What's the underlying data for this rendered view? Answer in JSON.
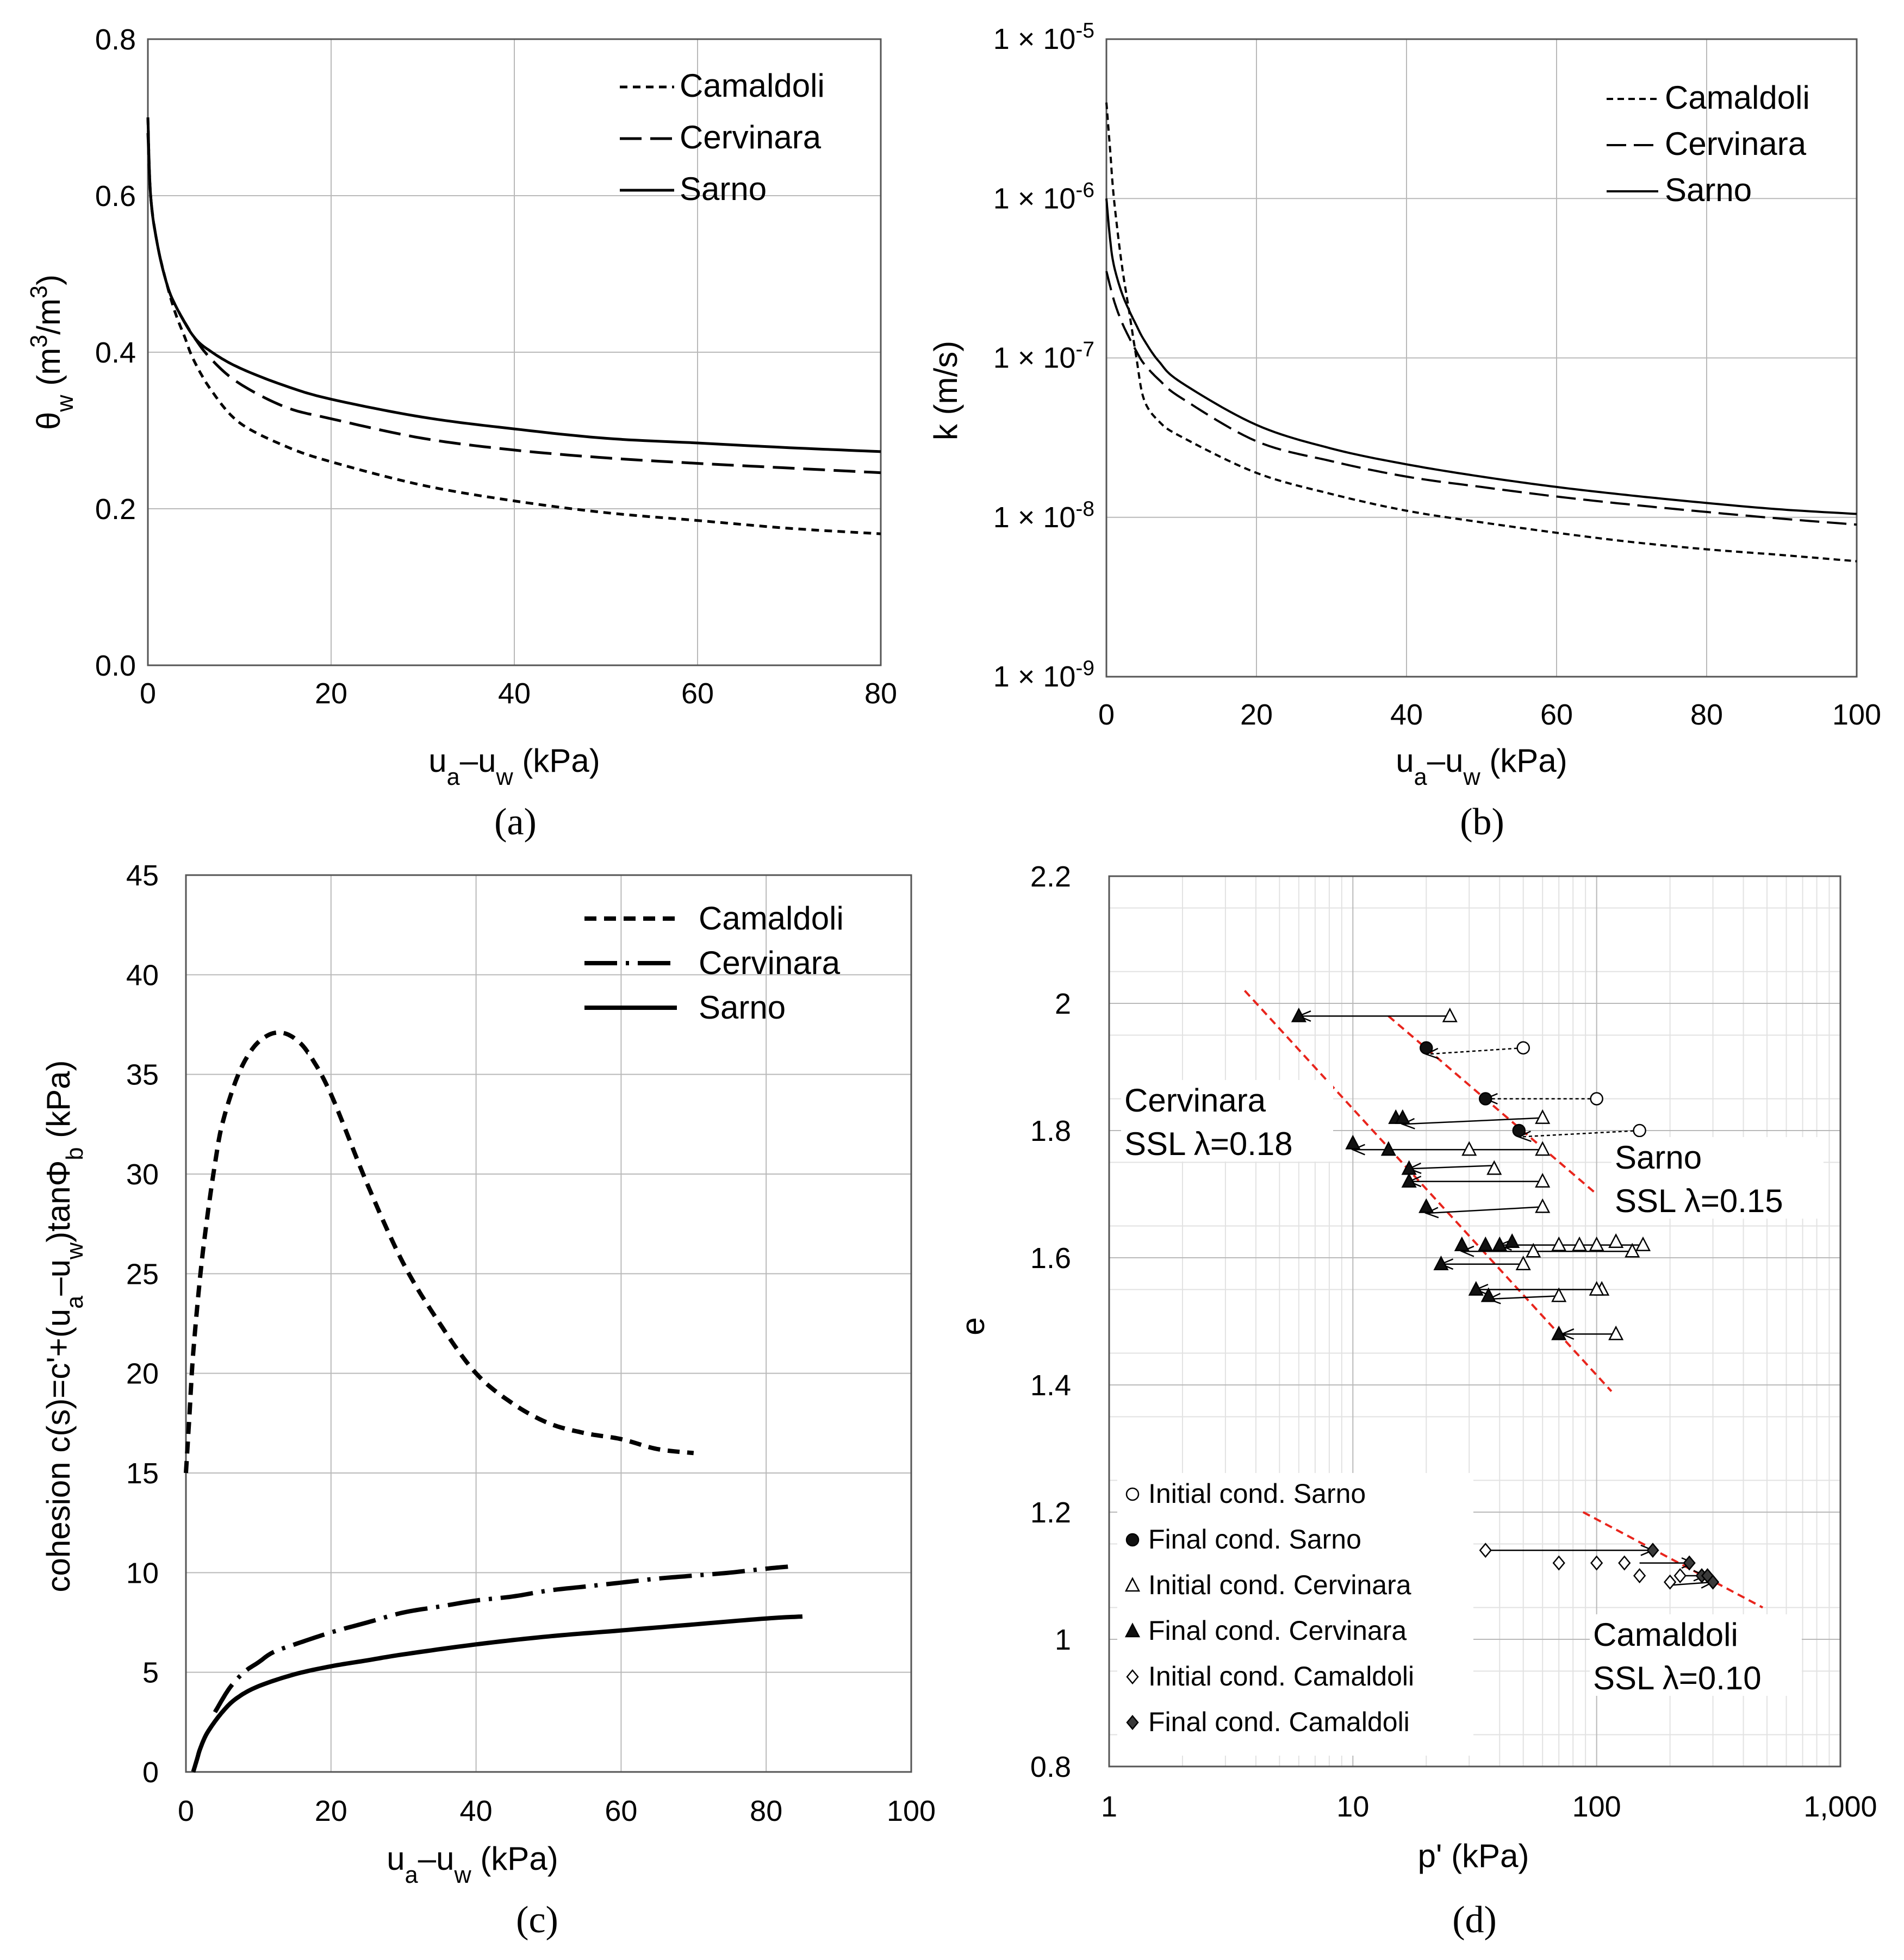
{
  "chart_data": [
    {
      "id": "a",
      "type": "line",
      "panel_label": "(a)",
      "xlabel": "ua–uw (kPa)",
      "ylabel": "θw (m3/m3)",
      "xlim": [
        0,
        80
      ],
      "ylim": [
        0,
        0.8
      ],
      "xticks": [
        0,
        20,
        40,
        60,
        80
      ],
      "yticks": [
        0,
        0.2,
        0.4,
        0.6,
        0.8
      ],
      "xtick_labels": [
        "0",
        "20",
        "40",
        "60",
        "80"
      ],
      "ytick_labels": [
        "0.0",
        "0.2",
        "0.4",
        "0.6",
        "0.8"
      ],
      "legend_position": "top-right",
      "series": [
        {
          "name": "Camaldoli",
          "style": "short-dash",
          "x": [
            0,
            0.3,
            1,
            2,
            3,
            4,
            5,
            7,
            10,
            15,
            20,
            30,
            40,
            50,
            60,
            70,
            80
          ],
          "y": [
            0.7,
            0.6,
            0.54,
            0.49,
            0.45,
            0.42,
            0.39,
            0.35,
            0.31,
            0.28,
            0.26,
            0.23,
            0.21,
            0.195,
            0.185,
            0.175,
            0.168
          ]
        },
        {
          "name": "Cervinara",
          "style": "long-dash",
          "x": [
            0,
            0.3,
            1,
            2,
            3,
            5,
            7,
            10,
            15,
            20,
            30,
            40,
            50,
            60,
            70,
            80
          ],
          "y": [
            0.68,
            0.6,
            0.54,
            0.49,
            0.46,
            0.42,
            0.39,
            0.36,
            0.33,
            0.315,
            0.29,
            0.275,
            0.265,
            0.258,
            0.252,
            0.246
          ]
        },
        {
          "name": "Sarno",
          "style": "solid",
          "x": [
            0,
            0.3,
            1,
            2,
            3,
            5,
            7,
            10,
            15,
            20,
            30,
            40,
            50,
            60,
            70,
            80
          ],
          "y": [
            0.7,
            0.6,
            0.54,
            0.49,
            0.46,
            0.42,
            0.4,
            0.38,
            0.357,
            0.34,
            0.317,
            0.302,
            0.29,
            0.284,
            0.278,
            0.273
          ]
        }
      ]
    },
    {
      "id": "b",
      "type": "line",
      "panel_label": "(b)",
      "xlabel": "ua–uw (kPa)",
      "ylabel": "k (m/s)",
      "xlim": [
        0,
        100
      ],
      "ylim_log10": [
        -9,
        -5
      ],
      "yscale": "log",
      "xticks": [
        0,
        20,
        40,
        60,
        80,
        100
      ],
      "xtick_labels": [
        "0",
        "20",
        "40",
        "60",
        "80",
        "100"
      ],
      "ytick_exponents": [
        -9,
        -8,
        -7,
        -6,
        -5
      ],
      "ytick_labels": [
        "1 × 10-9",
        "1 × 10-8",
        "1 × 10-7",
        "1 × 10-6",
        "1 × 10-5"
      ],
      "legend_position": "top-right",
      "series": [
        {
          "name": "Camaldoli",
          "style": "short-dash",
          "x": [
            0,
            0.5,
            1,
            2,
            3,
            4,
            5,
            7,
            10,
            20,
            30,
            40,
            50,
            60,
            70,
            80,
            90,
            100
          ],
          "y": [
            4e-06,
            2e-06,
            1e-06,
            4e-07,
            2e-07,
            1e-07,
            5.5e-08,
            4e-08,
            3.2e-08,
            1.9e-08,
            1.4e-08,
            1.1e-08,
            9.3e-09,
            8e-09,
            7e-09,
            6.3e-09,
            5.8e-09,
            5.3e-09
          ]
        },
        {
          "name": "Cervinara",
          "style": "long-dash",
          "x": [
            0,
            1,
            2,
            3,
            4,
            5,
            7,
            10,
            20,
            30,
            40,
            50,
            60,
            70,
            80,
            90,
            100
          ],
          "y": [
            3.5e-07,
            2.3e-07,
            1.7e-07,
            1.35e-07,
            1.1e-07,
            9.2e-08,
            7.3e-08,
            5.6e-08,
            3e-08,
            2.25e-08,
            1.8e-08,
            1.55e-08,
            1.35e-08,
            1.2e-08,
            1.08e-08,
            9.8e-09,
            9e-09
          ]
        },
        {
          "name": "Sarno",
          "style": "solid",
          "x": [
            0,
            0.5,
            1,
            2,
            3,
            4,
            5,
            7,
            10,
            20,
            30,
            40,
            50,
            60,
            70,
            80,
            90,
            100
          ],
          "y": [
            1e-06,
            5.5e-07,
            3.8e-07,
            2.6e-07,
            2e-07,
            1.6e-07,
            1.3e-07,
            9.5e-08,
            7e-08,
            3.8e-08,
            2.7e-08,
            2.15e-08,
            1.8e-08,
            1.55e-08,
            1.37e-08,
            1.23e-08,
            1.12e-08,
            1.05e-08
          ]
        }
      ]
    },
    {
      "id": "c",
      "type": "line",
      "panel_label": "(c)",
      "xlabel": "ua–uw (kPa)",
      "ylabel": "cohesion c(s)=c'+(ua–uw)tanΦb (kPa)",
      "xlim": [
        0,
        100
      ],
      "ylim": [
        0,
        45
      ],
      "xticks": [
        0,
        20,
        40,
        60,
        80,
        100
      ],
      "yticks": [
        0,
        5,
        10,
        15,
        20,
        25,
        30,
        35,
        40,
        45
      ],
      "xtick_labels": [
        "0",
        "20",
        "40",
        "60",
        "80",
        "100"
      ],
      "ytick_labels": [
        "0",
        "5",
        "10",
        "15",
        "20",
        "25",
        "30",
        "35",
        "40",
        "45"
      ],
      "legend_position": "top-right",
      "series": [
        {
          "name": "Camaldoli",
          "style": "short-dash",
          "x": [
            0,
            0.5,
            1,
            2,
            3,
            4,
            5,
            7,
            9,
            11,
            13,
            15,
            17,
            20,
            25,
            30,
            35,
            40,
            45,
            50,
            55,
            60,
            65,
            70
          ],
          "y": [
            15,
            18,
            21,
            25,
            28,
            30.5,
            32.5,
            34.8,
            36.2,
            36.9,
            37.1,
            36.8,
            36,
            34,
            29.5,
            25.5,
            22.5,
            20,
            18.5,
            17.5,
            17,
            16.7,
            16.2,
            16
          ]
        },
        {
          "name": "Cervinara",
          "style": "long-dash",
          "x": [
            4,
            6,
            8,
            10,
            12,
            15,
            20,
            25,
            30,
            35,
            40,
            45,
            50,
            55,
            60,
            65,
            70,
            75,
            80,
            83
          ],
          "y": [
            3,
            4.2,
            5,
            5.5,
            6,
            6.4,
            7,
            7.5,
            8,
            8.3,
            8.6,
            8.8,
            9.1,
            9.3,
            9.5,
            9.7,
            9.85,
            10,
            10.2,
            10.3
          ]
        },
        {
          "name": "Sarno",
          "style": "solid",
          "x": [
            1,
            1.5,
            2,
            3,
            5,
            7,
            10,
            15,
            20,
            25,
            30,
            40,
            50,
            60,
            70,
            80,
            85
          ],
          "y": [
            0,
            0.6,
            1.2,
            2,
            3,
            3.7,
            4.3,
            4.9,
            5.3,
            5.6,
            5.9,
            6.4,
            6.8,
            7.1,
            7.4,
            7.7,
            7.8
          ]
        }
      ]
    },
    {
      "id": "d",
      "type": "scatter",
      "panel_label": "(d)",
      "xlabel": "p' (kPa)",
      "ylabel": "e",
      "xscale": "log",
      "xlim": [
        1,
        1000
      ],
      "ylim": [
        0.8,
        2.2
      ],
      "xticks": [
        1,
        10,
        100,
        1000
      ],
      "xtick_labels": [
        "1",
        "10",
        "100",
        "1,000"
      ],
      "yticks": [
        0.8,
        1.0,
        1.2,
        1.4,
        1.6,
        1.8,
        2.0,
        2.2
      ],
      "ytick_labels": [
        "0.8",
        "1",
        "1.2",
        "1.4",
        "1.6",
        "1.8",
        "2",
        "2.2"
      ],
      "annotations": [
        {
          "lines": [
            "Cervinara",
            "SSL λ=0.18"
          ]
        },
        {
          "lines": [
            "Sarno",
            "SSL λ=0.15"
          ]
        },
        {
          "lines": [
            "Camaldoli",
            "SSL λ=0.10"
          ]
        }
      ],
      "ssl_lines": [
        {
          "name": "Cervinara SSL",
          "x": [
            3.6,
            115
          ],
          "y": [
            2.02,
            1.39
          ]
        },
        {
          "name": "Sarno SSL",
          "x": [
            14,
            100
          ],
          "y": [
            1.98,
            1.7
          ]
        },
        {
          "name": "Camaldoli SSL",
          "x": [
            88,
            480
          ],
          "y": [
            1.2,
            1.05
          ]
        }
      ],
      "legend_position": "bottom-left",
      "series": [
        {
          "name": "Initial cond. Sarno",
          "marker": "open-circle",
          "x": [
            50,
            100,
            150
          ],
          "y": [
            1.93,
            1.85,
            1.8
          ]
        },
        {
          "name": "Final cond. Sarno",
          "marker": "filled-circle",
          "x": [
            20,
            35,
            48
          ],
          "y": [
            1.93,
            1.85,
            1.8
          ]
        },
        {
          "name": "Initial cond. Cervinara",
          "marker": "open-triangle",
          "x": [
            25,
            60,
            60,
            30,
            38,
            60,
            60,
            55,
            85,
            70,
            100,
            120,
            140,
            155,
            105,
            50,
            70,
            100,
            120
          ],
          "y": [
            1.98,
            1.82,
            1.77,
            1.77,
            1.74,
            1.72,
            1.68,
            1.61,
            1.62,
            1.62,
            1.62,
            1.625,
            1.61,
            1.62,
            1.55,
            1.59,
            1.54,
            1.55,
            1.48
          ]
        },
        {
          "name": "Final cond. Cervinara",
          "marker": "filled-triangle",
          "x": [
            6,
            15,
            16,
            10,
            14,
            17,
            17,
            20,
            20,
            28,
            35,
            40,
            45,
            23,
            32,
            36,
            70
          ],
          "y": [
            1.98,
            1.82,
            1.82,
            1.78,
            1.77,
            1.74,
            1.72,
            1.68,
            1.68,
            1.62,
            1.62,
            1.62,
            1.625,
            1.59,
            1.55,
            1.54,
            1.48
          ]
        },
        {
          "name": "Initial cond. Camaldoli",
          "marker": "open-diamond",
          "x": [
            35,
            70,
            100,
            130,
            150,
            200,
            220
          ],
          "y": [
            1.14,
            1.12,
            1.12,
            1.12,
            1.1,
            1.09,
            1.1
          ]
        },
        {
          "name": "Final cond. Camaldoli",
          "marker": "filled-diamond",
          "x": [
            170,
            240,
            270,
            285,
            300
          ],
          "y": [
            1.14,
            1.12,
            1.1,
            1.1,
            1.09
          ]
        }
      ],
      "arrows": [
        {
          "from": [
            25,
            1.98
          ],
          "to": [
            6,
            1.98
          ],
          "style": "solid"
        },
        {
          "from": [
            50,
            1.93
          ],
          "to": [
            20,
            1.92
          ],
          "style": "dotted"
        },
        {
          "from": [
            100,
            1.85
          ],
          "to": [
            35,
            1.85
          ],
          "style": "dotted"
        },
        {
          "from": [
            150,
            1.8
          ],
          "to": [
            48,
            1.79
          ],
          "style": "dotted"
        },
        {
          "from": [
            60,
            1.82
          ],
          "to": [
            16,
            1.81
          ],
          "style": "solid"
        },
        {
          "from": [
            60,
            1.77
          ],
          "to": [
            10,
            1.77
          ],
          "style": "solid"
        },
        {
          "from": [
            38,
            1.745
          ],
          "to": [
            17,
            1.74
          ],
          "style": "solid"
        },
        {
          "from": [
            60,
            1.72
          ],
          "to": [
            17,
            1.72
          ],
          "style": "solid"
        },
        {
          "from": [
            60,
            1.68
          ],
          "to": [
            20,
            1.67
          ],
          "style": "solid"
        },
        {
          "from": [
            155,
            1.62
          ],
          "to": [
            40,
            1.62
          ],
          "style": "solid"
        },
        {
          "from": [
            140,
            1.61
          ],
          "to": [
            28,
            1.61
          ],
          "style": "solid"
        },
        {
          "from": [
            50,
            1.59
          ],
          "to": [
            23,
            1.59
          ],
          "style": "solid"
        },
        {
          "from": [
            100,
            1.55
          ],
          "to": [
            32,
            1.55
          ],
          "style": "solid"
        },
        {
          "from": [
            70,
            1.54
          ],
          "to": [
            36,
            1.535
          ],
          "style": "solid"
        },
        {
          "from": [
            120,
            1.48
          ],
          "to": [
            72,
            1.48
          ],
          "style": "solid"
        },
        {
          "from": [
            35,
            1.14
          ],
          "to": [
            170,
            1.14
          ],
          "style": "solid"
        },
        {
          "from": [
            150,
            1.12
          ],
          "to": [
            250,
            1.12
          ],
          "style": "solid"
        },
        {
          "from": [
            220,
            1.1
          ],
          "to": [
            280,
            1.1
          ],
          "style": "solid"
        },
        {
          "from": [
            200,
            1.085
          ],
          "to": [
            300,
            1.09
          ],
          "style": "solid"
        }
      ]
    }
  ]
}
